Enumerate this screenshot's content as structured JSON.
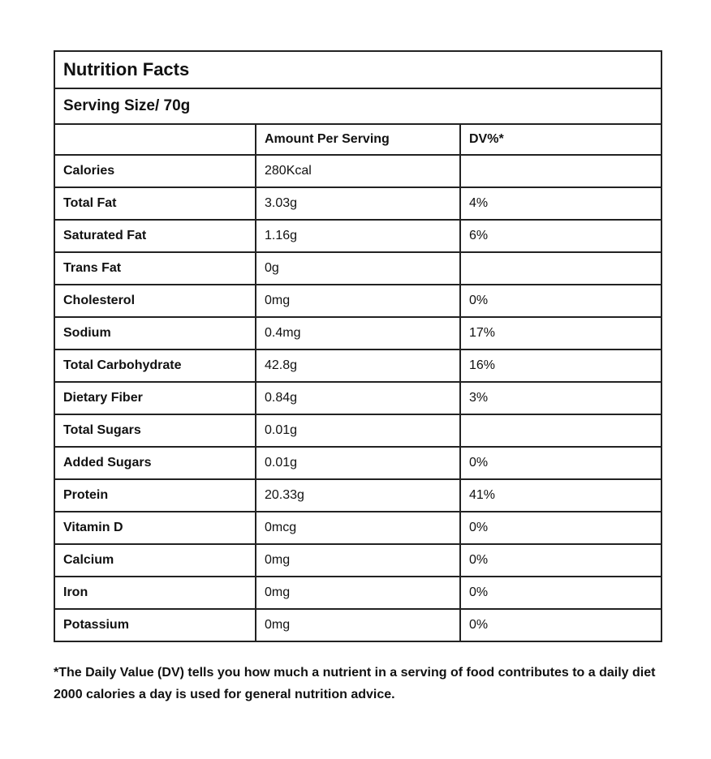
{
  "table": {
    "title": "Nutrition Facts",
    "serving_size": "Serving Size/ 70g",
    "columns": {
      "nutrient": "",
      "amount": "Amount Per Serving",
      "dv": "DV%*"
    },
    "rows": [
      {
        "label": "Calories",
        "amount": "280Kcal",
        "dv": ""
      },
      {
        "label": "Total Fat",
        "amount": "3.03g",
        "dv": "4%"
      },
      {
        "label": "Saturated Fat",
        "amount": "1.16g",
        "dv": "6%"
      },
      {
        "label": "Trans Fat",
        "amount": "0g",
        "dv": ""
      },
      {
        "label": "Cholesterol",
        "amount": "0mg",
        "dv": "0%"
      },
      {
        "label": "Sodium",
        "amount": "0.4mg",
        "dv": "17%"
      },
      {
        "label": "Total Carbohydrate",
        "amount": "42.8g",
        "dv": "16%"
      },
      {
        "label": "Dietary Fiber",
        "amount": "0.84g",
        "dv": "3%"
      },
      {
        "label": "Total Sugars",
        "amount": "0.01g",
        "dv": ""
      },
      {
        "label": "Added Sugars",
        "amount": "0.01g",
        "dv": "0%"
      },
      {
        "label": "Protein",
        "amount": "20.33g",
        "dv": "41%"
      },
      {
        "label": "Vitamin D",
        "amount": "0mcg",
        "dv": "0%"
      },
      {
        "label": "Calcium",
        "amount": "0mg",
        "dv": "0%"
      },
      {
        "label": "Iron",
        "amount": "0mg",
        "dv": "0%"
      },
      {
        "label": "Potassium",
        "amount": "0mg",
        "dv": "0%"
      }
    ]
  },
  "footnote": "*The Daily Value (DV) tells you how much a nutrient in a serving of food contributes to a daily diet 2000 calories a day is used for general nutrition advice.",
  "colors": {
    "border": "#222222",
    "text": "#111111",
    "background": "#ffffff"
  }
}
